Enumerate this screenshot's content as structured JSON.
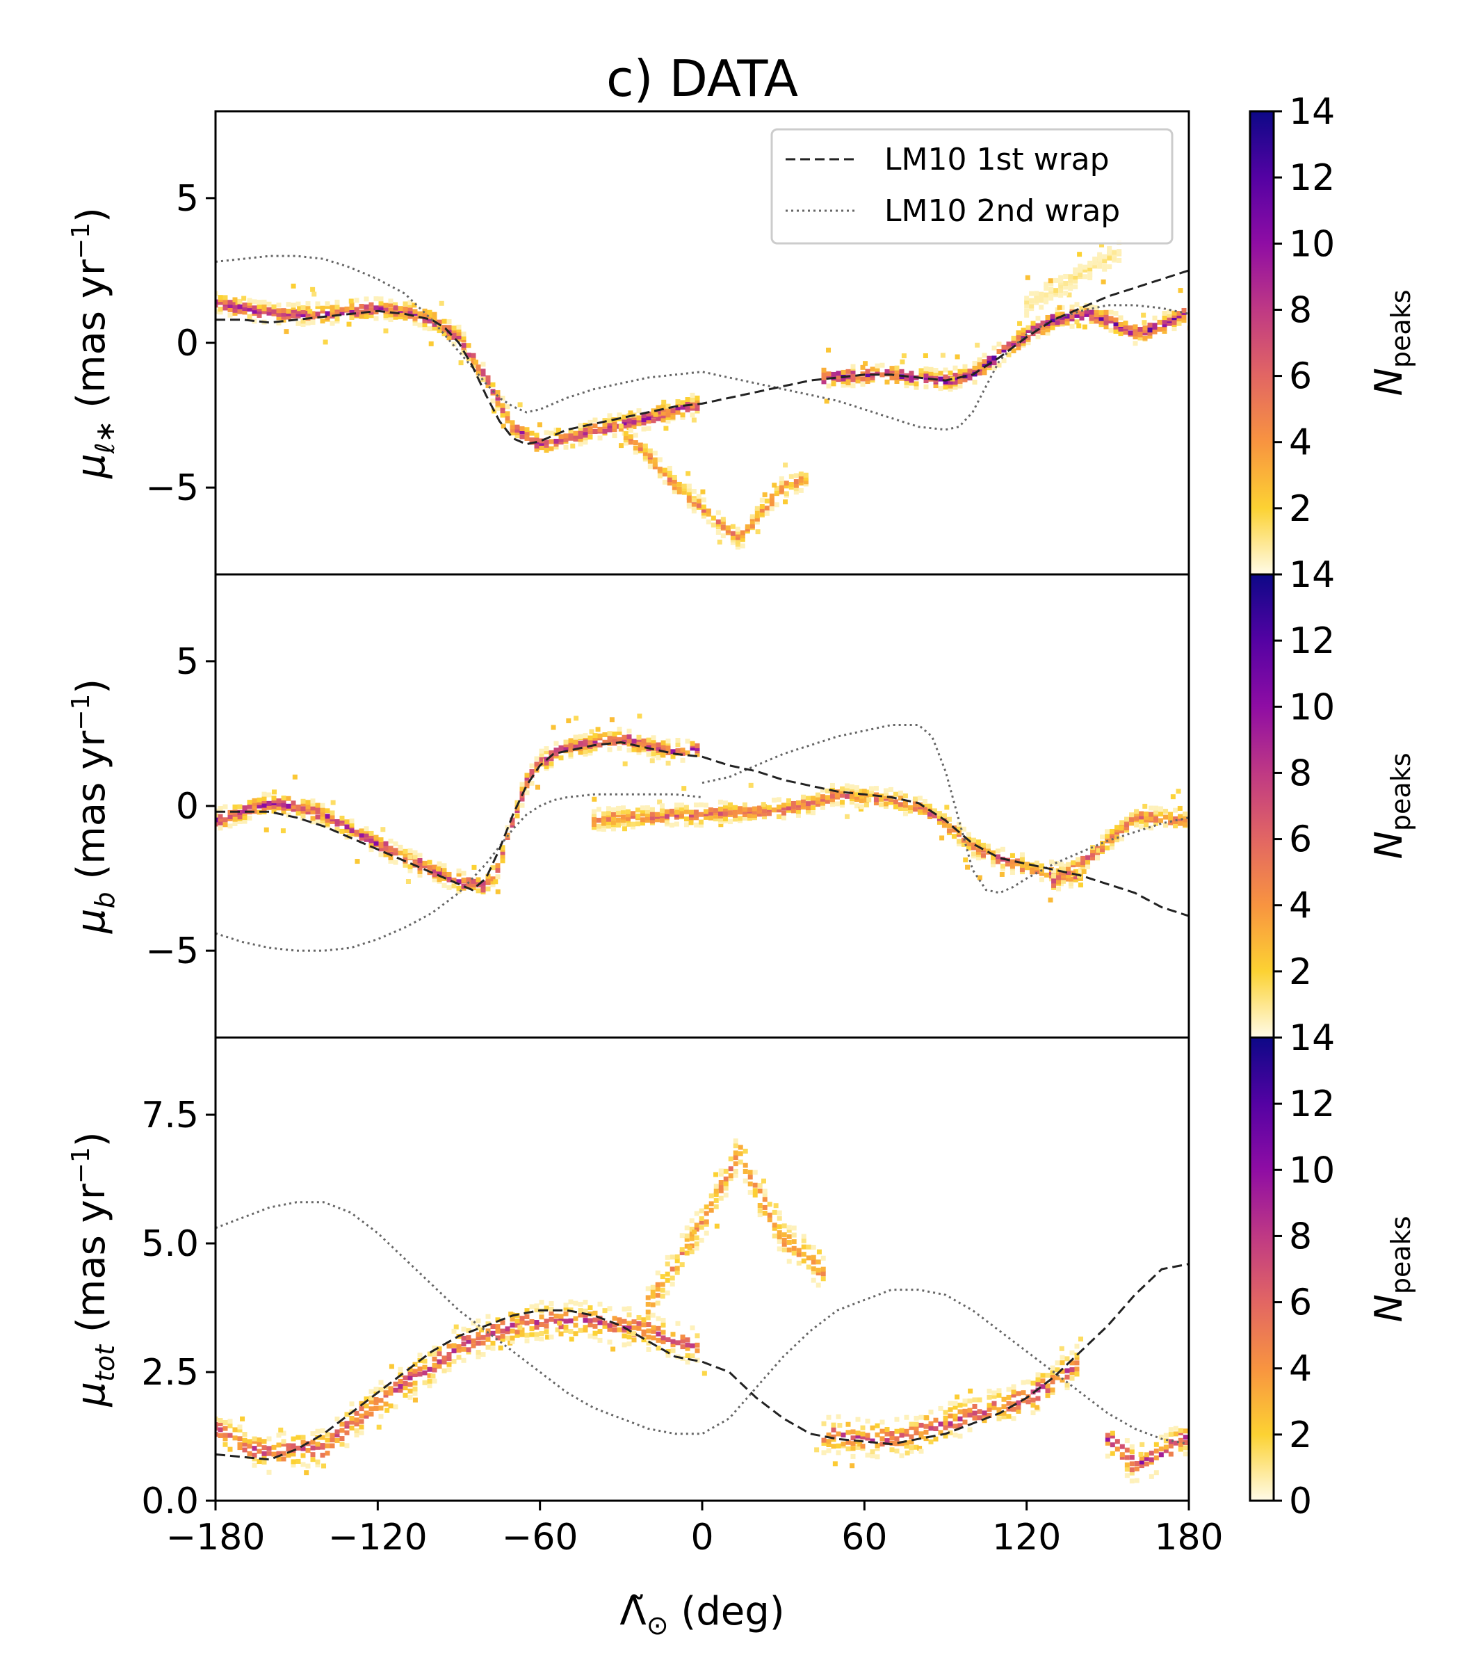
{
  "figure": {
    "title": "c) DATA"
  },
  "colorbar": {
    "label": "N",
    "label_sub": "peaks",
    "ticks": [
      2,
      4,
      6,
      8,
      10,
      12,
      14
    ],
    "bottom_ticks": [
      0,
      2,
      4,
      6,
      8,
      10,
      12,
      14
    ],
    "vmin": 0,
    "vmax": 14,
    "colormap": "plasma_r",
    "colors": [
      "#fffbe8",
      "#fcd233",
      "#f89440",
      "#e26663",
      "#bf3984",
      "#8f0da4",
      "#5402a3",
      "#0d0887"
    ]
  },
  "legend": {
    "items": [
      {
        "label": "LM10 1st wrap",
        "style": "dashed",
        "color": "#222222"
      },
      {
        "label": "LM10 2nd wrap",
        "style": "dotted",
        "color": "#666666"
      }
    ]
  },
  "chart_data": [
    {
      "type": "heatmap+line",
      "name": "mu_l",
      "ylabel_main": "μ",
      "ylabel_sub": "ℓ∗",
      "ylabel_rest": " (mas yr",
      "ylabel_sup": "−1",
      "ylabel_end": ")",
      "xlim": [
        -180,
        180
      ],
      "ylim": [
        -8,
        8
      ],
      "yticks": [
        -5,
        0,
        5
      ],
      "ytick_labels": [
        "−5",
        "0",
        "5"
      ],
      "first_wrap": {
        "x": [
          -180,
          -170,
          -160,
          -150,
          -140,
          -130,
          -120,
          -110,
          -100,
          -95,
          -90,
          -85,
          -80,
          -75,
          -70,
          -65,
          -60,
          -55,
          -50,
          -40,
          -30,
          -20,
          -10,
          0,
          10,
          20,
          30,
          40,
          50,
          60,
          70,
          80,
          90,
          100,
          110,
          120,
          130,
          140,
          150,
          160,
          170,
          180
        ],
        "y": [
          0.8,
          0.8,
          0.7,
          0.8,
          0.9,
          1.0,
          1.1,
          1.0,
          0.8,
          0.5,
          0.0,
          -0.8,
          -1.8,
          -2.7,
          -3.3,
          -3.5,
          -3.4,
          -3.2,
          -3.0,
          -2.8,
          -2.6,
          -2.4,
          -2.2,
          -2.1,
          -1.9,
          -1.7,
          -1.5,
          -1.3,
          -1.2,
          -1.1,
          -1.1,
          -1.2,
          -1.3,
          -1.1,
          -0.5,
          0.2,
          0.8,
          1.2,
          1.6,
          1.9,
          2.2,
          2.5
        ]
      },
      "second_wrap": {
        "x": [
          -180,
          -170,
          -160,
          -150,
          -140,
          -130,
          -120,
          -110,
          -100,
          -90,
          -80,
          -75,
          -70,
          -65,
          -60,
          -55,
          -50,
          -40,
          -30,
          -20,
          -10,
          0,
          10,
          20,
          30,
          40,
          50,
          60,
          70,
          80,
          90,
          95,
          100,
          105,
          110,
          120,
          130,
          140,
          150,
          160,
          170,
          180
        ],
        "y": [
          2.8,
          2.9,
          3.0,
          3.0,
          2.9,
          2.6,
          2.2,
          1.7,
          0.8,
          -0.3,
          -1.4,
          -1.9,
          -2.2,
          -2.4,
          -2.3,
          -2.1,
          -1.9,
          -1.6,
          -1.4,
          -1.2,
          -1.1,
          -1.0,
          -1.2,
          -1.4,
          -1.6,
          -1.8,
          -2.0,
          -2.3,
          -2.6,
          -2.9,
          -3.0,
          -2.9,
          -2.4,
          -1.5,
          -0.6,
          0.3,
          0.8,
          1.1,
          1.3,
          1.3,
          1.2,
          1.0
        ]
      },
      "density": [
        {
          "x": [
            -180,
            -170,
            -160,
            -150,
            -140,
            -130,
            -120,
            -110,
            -100,
            -90,
            -80,
            -70,
            -60,
            -50,
            -40,
            -30,
            -20,
            -10,
            0
          ],
          "y": [
            1.4,
            1.2,
            1.0,
            1.0,
            1.0,
            1.1,
            1.2,
            1.1,
            0.8,
            0.2,
            -1.2,
            -2.9,
            -3.5,
            -3.3,
            -3.0,
            -2.8,
            -2.6,
            -2.3,
            -2.1
          ],
          "n": 7
        },
        {
          "x": [
            45,
            60,
            70,
            80,
            90,
            100,
            110,
            120,
            130,
            140,
            150,
            160,
            170,
            180
          ],
          "y": [
            -1.2,
            -1.1,
            -1.1,
            -1.2,
            -1.3,
            -1.1,
            -0.4,
            0.3,
            0.8,
            1.0,
            0.8,
            0.3,
            0.6,
            1.1
          ],
          "n": 8
        },
        {
          "x": [
            -30,
            -20,
            -10,
            0,
            10,
            14,
            20,
            30,
            40
          ],
          "y": [
            -3.0,
            -3.9,
            -4.9,
            -5.7,
            -6.5,
            -6.8,
            -6.0,
            -5.0,
            -4.6
          ],
          "n": 4
        },
        {
          "x": [
            120,
            130,
            140,
            150,
            155
          ],
          "y": [
            1.3,
            1.8,
            2.4,
            2.9,
            3.2
          ],
          "n": 1
        }
      ]
    },
    {
      "type": "heatmap+line",
      "name": "mu_b",
      "ylabel_main": "μ",
      "ylabel_sub": "b",
      "ylabel_rest": " (mas yr",
      "ylabel_sup": "−1",
      "ylabel_end": ")",
      "xlim": [
        -180,
        180
      ],
      "ylim": [
        -8,
        8
      ],
      "yticks": [
        -5,
        0,
        5
      ],
      "ytick_labels": [
        "−5",
        "0",
        "5"
      ],
      "first_wrap": {
        "x": [
          -180,
          -170,
          -160,
          -150,
          -140,
          -130,
          -120,
          -110,
          -100,
          -90,
          -85,
          -80,
          -75,
          -70,
          -65,
          -60,
          -55,
          -50,
          -40,
          -30,
          -20,
          -10,
          0,
          10,
          20,
          30,
          40,
          50,
          60,
          70,
          80,
          90,
          100,
          110,
          120,
          130,
          140,
          150,
          160,
          170,
          180
        ],
        "y": [
          -0.2,
          -0.2,
          -0.2,
          -0.4,
          -0.7,
          -1.1,
          -1.5,
          -1.9,
          -2.3,
          -2.7,
          -2.9,
          -2.5,
          -1.5,
          -0.3,
          0.7,
          1.4,
          1.8,
          1.9,
          2.1,
          2.2,
          2.0,
          1.8,
          1.7,
          1.4,
          1.2,
          0.9,
          0.7,
          0.5,
          0.4,
          0.3,
          0.1,
          -0.5,
          -1.3,
          -1.8,
          -2.0,
          -2.2,
          -2.4,
          -2.7,
          -3.0,
          -3.5,
          -3.8
        ]
      },
      "second_wrap": {
        "x": [
          -180,
          -170,
          -160,
          -150,
          -140,
          -130,
          -120,
          -110,
          -100,
          -90,
          -80,
          -70,
          -65,
          -60,
          -55,
          -50,
          -40,
          -30,
          -20,
          -10,
          0
        ],
        "y": [
          -4.4,
          -4.7,
          -4.9,
          -5.0,
          -5.0,
          -4.9,
          -4.6,
          -4.2,
          -3.7,
          -3.0,
          -2.0,
          -0.8,
          -0.3,
          0.0,
          0.2,
          0.3,
          0.4,
          0.4,
          0.4,
          0.4,
          0.3
        ]
      },
      "second_wrap_b": {
        "x": [
          0,
          10,
          20,
          30,
          40,
          50,
          60,
          70,
          80,
          85,
          90,
          95,
          100,
          105,
          110,
          115,
          120,
          130,
          140,
          150,
          160,
          170,
          180
        ],
        "y": [
          0.8,
          1.0,
          1.4,
          1.8,
          2.1,
          2.4,
          2.6,
          2.8,
          2.8,
          2.4,
          1.2,
          -0.5,
          -2.2,
          -2.9,
          -3.0,
          -2.8,
          -2.5,
          -2.0,
          -1.6,
          -1.2,
          -0.9,
          -0.6,
          -0.4
        ]
      },
      "density": [
        {
          "x": [
            -180,
            -170,
            -160,
            -150,
            -140,
            -130,
            -120,
            -110,
            -100,
            -90,
            -80,
            -75,
            -70,
            -65,
            -60,
            -50,
            -40,
            -30,
            -20,
            -10,
            0
          ],
          "y": [
            -0.5,
            -0.2,
            0.1,
            0.0,
            -0.3,
            -0.8,
            -1.3,
            -1.8,
            -2.2,
            -2.6,
            -2.8,
            -2.0,
            -0.5,
            0.8,
            1.5,
            2.0,
            2.2,
            2.3,
            2.1,
            1.9,
            2.0
          ],
          "n": 7
        },
        {
          "x": [
            -40,
            -30,
            -20,
            -10,
            0,
            10,
            20,
            30,
            40,
            50,
            60,
            70,
            80,
            90,
            100,
            110,
            120,
            130,
            140
          ],
          "y": [
            -0.5,
            -0.4,
            -0.4,
            -0.3,
            -0.3,
            -0.2,
            -0.2,
            -0.1,
            0.1,
            0.4,
            0.3,
            0.2,
            0.0,
            -0.6,
            -1.4,
            -1.8,
            -2.1,
            -2.3,
            -2.5
          ],
          "n": 5
        },
        {
          "x": [
            130,
            140,
            150,
            160,
            170,
            180
          ],
          "y": [
            -2.6,
            -2.0,
            -1.2,
            -0.4,
            -0.4,
            -0.5
          ],
          "n": 5
        }
      ]
    },
    {
      "type": "heatmap+line",
      "name": "mu_tot",
      "ylabel_main": "μ",
      "ylabel_sub": "tot",
      "ylabel_rest": " (mas yr",
      "ylabel_sup": "−1",
      "ylabel_end": ")",
      "xlim": [
        -180,
        180
      ],
      "ylim": [
        0,
        9
      ],
      "yticks": [
        0.0,
        2.5,
        5.0,
        7.5
      ],
      "ytick_labels": [
        "0.0",
        "2.5",
        "5.0",
        "7.5"
      ],
      "xticks": [
        -180,
        -120,
        -60,
        0,
        60,
        120,
        180
      ],
      "xtick_labels": [
        "−180",
        "−120",
        "−60",
        "0",
        "60",
        "120",
        "180"
      ],
      "xlabel_main": "Λ̃",
      "xlabel_sub": "⊙",
      "xlabel_rest": " (deg)",
      "first_wrap": {
        "x": [
          -180,
          -170,
          -160,
          -150,
          -140,
          -130,
          -120,
          -110,
          -100,
          -90,
          -80,
          -70,
          -60,
          -50,
          -40,
          -30,
          -20,
          -10,
          0,
          10,
          20,
          30,
          40,
          50,
          60,
          70,
          80,
          90,
          100,
          110,
          120,
          130,
          140,
          150,
          160,
          170,
          180
        ],
        "y": [
          0.9,
          0.85,
          0.8,
          1.0,
          1.3,
          1.7,
          2.1,
          2.5,
          2.9,
          3.2,
          3.4,
          3.6,
          3.7,
          3.7,
          3.6,
          3.4,
          3.1,
          2.8,
          2.7,
          2.5,
          2.0,
          1.6,
          1.3,
          1.2,
          1.15,
          1.1,
          1.2,
          1.3,
          1.5,
          1.7,
          2.0,
          2.4,
          2.9,
          3.4,
          4.0,
          4.5,
          4.6
        ]
      },
      "second_wrap": {
        "x": [
          -180,
          -170,
          -160,
          -150,
          -140,
          -130,
          -120,
          -110,
          -100,
          -90,
          -80,
          -70,
          -60,
          -50,
          -40,
          -30,
          -20,
          -10,
          0,
          10,
          20,
          30,
          40,
          50,
          60,
          70,
          80,
          90,
          100,
          110,
          120,
          130,
          140,
          150,
          160,
          170,
          180
        ],
        "y": [
          5.3,
          5.5,
          5.7,
          5.8,
          5.8,
          5.6,
          5.2,
          4.7,
          4.2,
          3.7,
          3.3,
          2.9,
          2.5,
          2.1,
          1.8,
          1.6,
          1.4,
          1.3,
          1.3,
          1.6,
          2.2,
          2.8,
          3.3,
          3.7,
          3.9,
          4.1,
          4.1,
          4.0,
          3.7,
          3.3,
          2.9,
          2.5,
          2.1,
          1.7,
          1.4,
          1.2,
          1.1
        ]
      },
      "density": [
        {
          "x": [
            -180,
            -170,
            -160,
            -150,
            -140,
            -130,
            -120,
            -110,
            -100,
            -90,
            -80,
            -70,
            -60,
            -50,
            -40,
            -30,
            -20,
            -10,
            0
          ],
          "y": [
            1.4,
            1.1,
            0.9,
            1.0,
            1.0,
            1.5,
            1.9,
            2.3,
            2.6,
            3.0,
            3.2,
            3.4,
            3.5,
            3.5,
            3.5,
            3.4,
            3.3,
            3.1,
            3.0
          ],
          "n": 6
        },
        {
          "x": [
            -20,
            -10,
            0,
            10,
            14,
            20,
            30,
            40,
            45
          ],
          "y": [
            3.8,
            4.6,
            5.4,
            6.4,
            6.8,
            6.0,
            5.1,
            4.7,
            4.4
          ],
          "n": 4
        },
        {
          "x": [
            45,
            60,
            70,
            80,
            90,
            100,
            110,
            120,
            130,
            140
          ],
          "y": [
            1.3,
            1.2,
            1.2,
            1.3,
            1.5,
            1.7,
            1.8,
            2.0,
            2.3,
            2.7
          ],
          "n": 6
        },
        {
          "x": [
            150,
            160,
            170,
            180
          ],
          "y": [
            1.2,
            0.7,
            0.9,
            1.3
          ],
          "n": 7
        }
      ]
    }
  ]
}
